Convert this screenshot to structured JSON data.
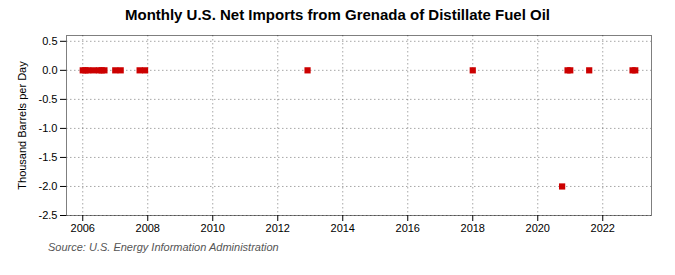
{
  "chart_data": {
    "type": "scatter",
    "title": "Monthly U.S. Net Imports from Grenada of Distillate Fuel Oil",
    "ylabel": "Thousand Barrels per Day",
    "annotations": [
      "Source: U.S. Energy Information Administration"
    ],
    "x": [
      2006.0,
      2006.083,
      2006.167,
      2006.333,
      2006.5,
      2006.583,
      2006.667,
      2007.0,
      2007.167,
      2007.75,
      2007.917,
      2012.917,
      2018.0,
      2020.75,
      2020.917,
      2021.0,
      2021.583,
      2022.917,
      2023.0
    ],
    "values": [
      0.0,
      0.0,
      0.0,
      0.0,
      0.0,
      0.0,
      0.0,
      0.0,
      0.0,
      0.0,
      0.0,
      0.0,
      0.0,
      -2.0,
      0.0,
      0.0,
      0.0,
      0.0,
      0.0
    ],
    "color": "#cc0000",
    "marker": "square",
    "xlim": [
      2005.5,
      2023.5
    ],
    "xticks": [
      2006,
      2008,
      2010,
      2012,
      2014,
      2016,
      2018,
      2020,
      2022
    ],
    "ylim": [
      -2.5,
      0.6
    ],
    "yticks": [
      0.5,
      {
        "value": 0.0,
        "label": "0.0"
      },
      -0.5,
      {
        "value": -1.0,
        "label": "-1.0"
      },
      -1.5,
      {
        "value": -2.0,
        "label": "-2.0"
      },
      -2.5
    ],
    "grid": true
  }
}
